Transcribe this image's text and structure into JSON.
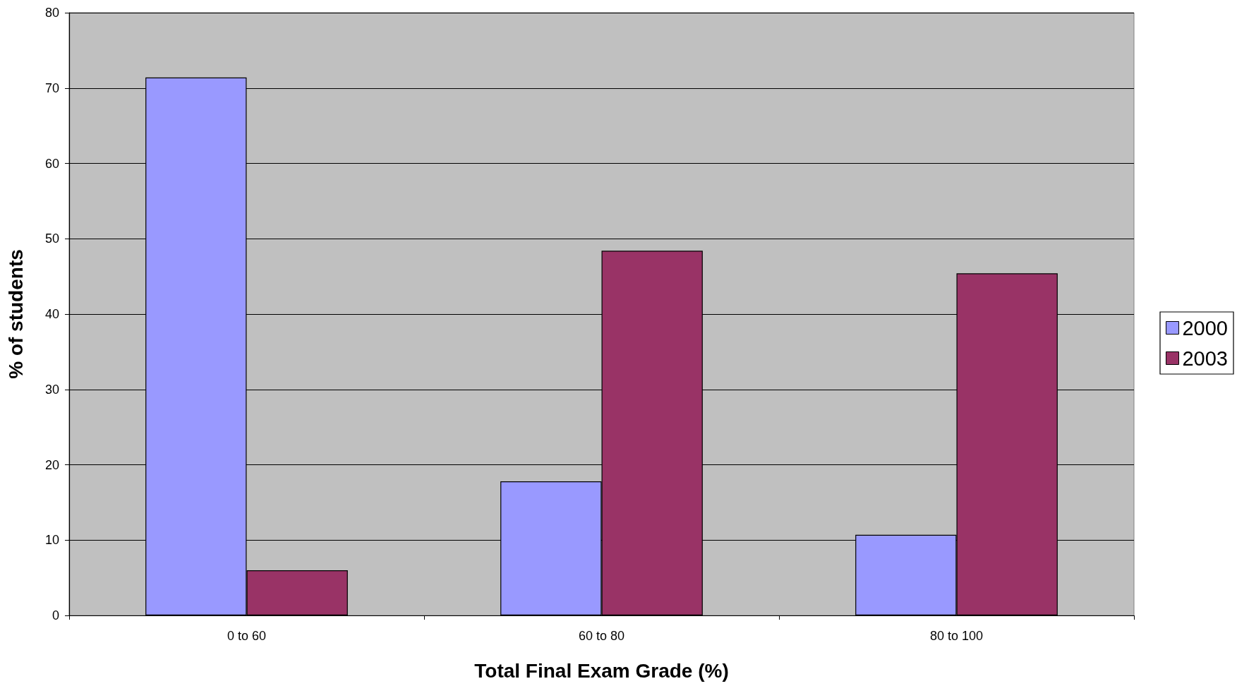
{
  "chart_data": {
    "type": "bar",
    "xlabel": "Total Final Exam Grade (%)",
    "ylabel": "% of students",
    "categories": [
      "0 to 60",
      "60 to 80",
      "80 to 100"
    ],
    "series": [
      {
        "name": "2000",
        "color": "#9999ff",
        "values": [
          71.4,
          17.8,
          10.7
        ]
      },
      {
        "name": "2003",
        "color": "#993366",
        "values": [
          6.0,
          48.4,
          45.4
        ]
      }
    ],
    "ylim": [
      0,
      80
    ],
    "yticks": [
      0,
      10,
      20,
      30,
      40,
      50,
      60,
      70,
      80
    ],
    "grid": "y",
    "legend": "right"
  }
}
